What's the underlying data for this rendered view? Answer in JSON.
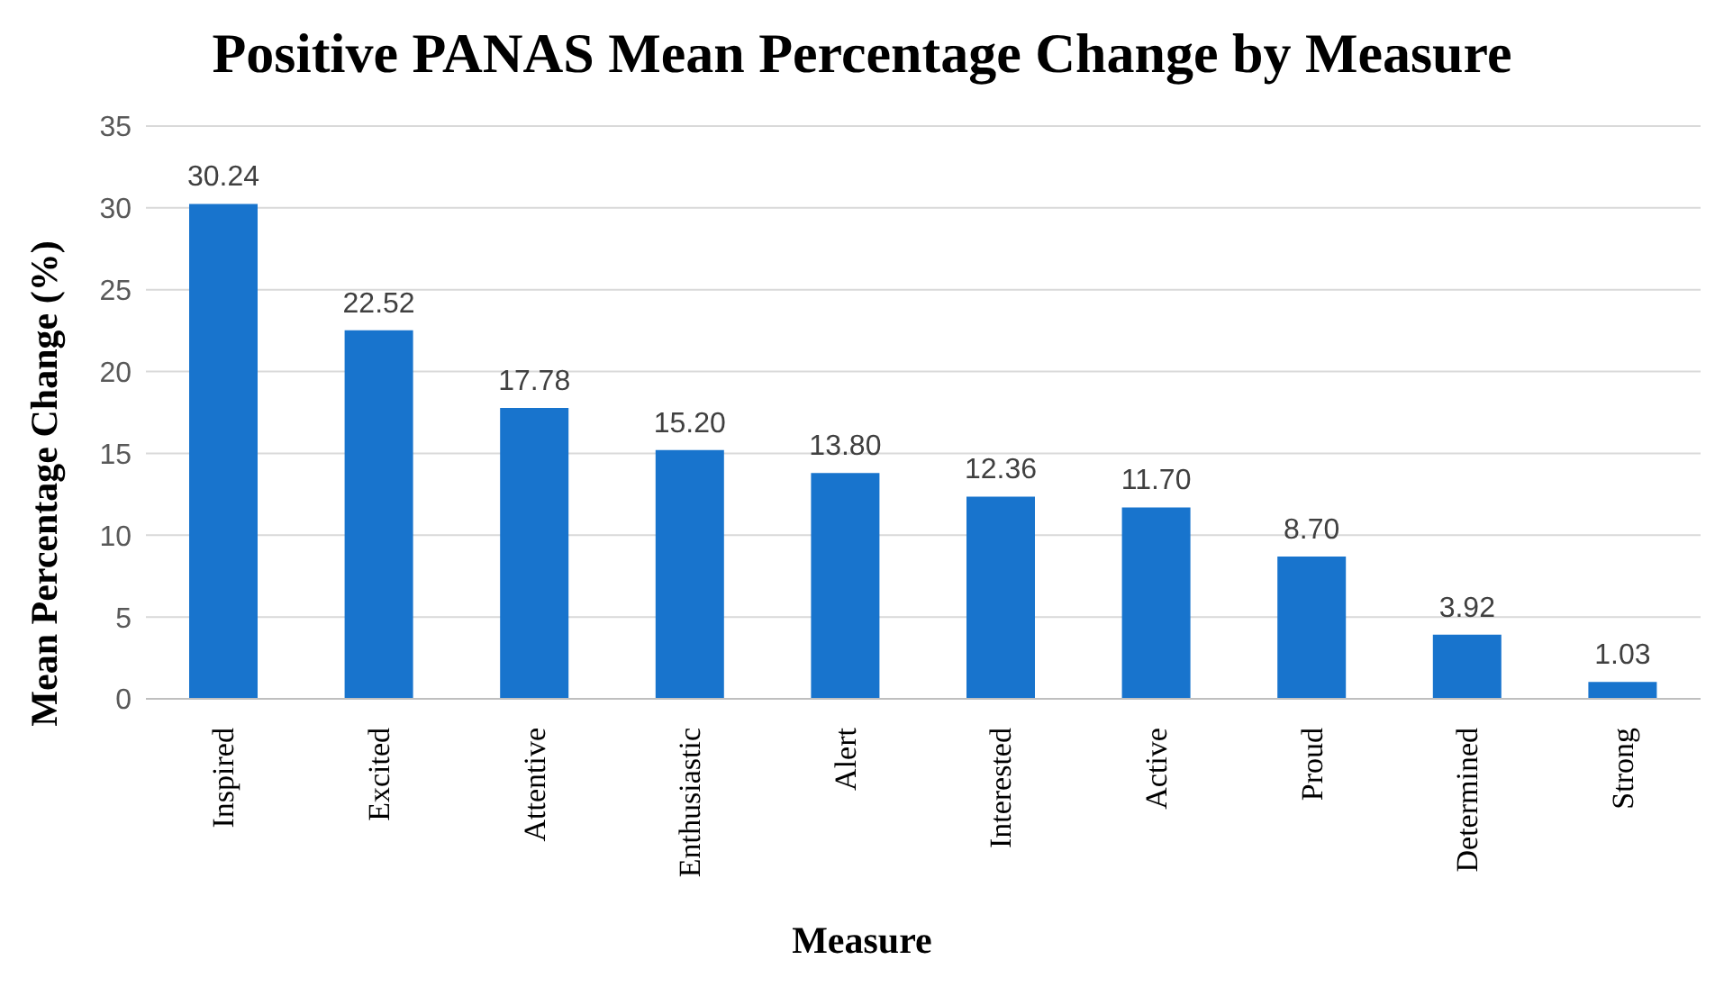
{
  "chart_data": {
    "type": "bar",
    "title": "Positive PANAS Mean Percentage Change by Measure",
    "xlabel": "Measure",
    "ylabel": "Mean Percentage Change (%)",
    "categories": [
      "Inspired",
      "Excited",
      "Attentive",
      "Enthusiastic",
      "Alert",
      "Interested",
      "Active",
      "Proud",
      "Determined",
      "Strong"
    ],
    "values": [
      30.24,
      22.52,
      17.78,
      15.2,
      13.8,
      12.36,
      11.7,
      8.7,
      3.92,
      1.03
    ],
    "value_labels": [
      "30.24",
      "22.52",
      "17.78",
      "15.20",
      "13.80",
      "12.36",
      "11.70",
      "8.70",
      "3.92",
      "1.03"
    ],
    "color": "#1874cd",
    "ylim": [
      0,
      35
    ],
    "yticks": [
      0,
      5,
      10,
      15,
      20,
      25,
      30,
      35
    ],
    "grid": "y",
    "legend": false
  }
}
